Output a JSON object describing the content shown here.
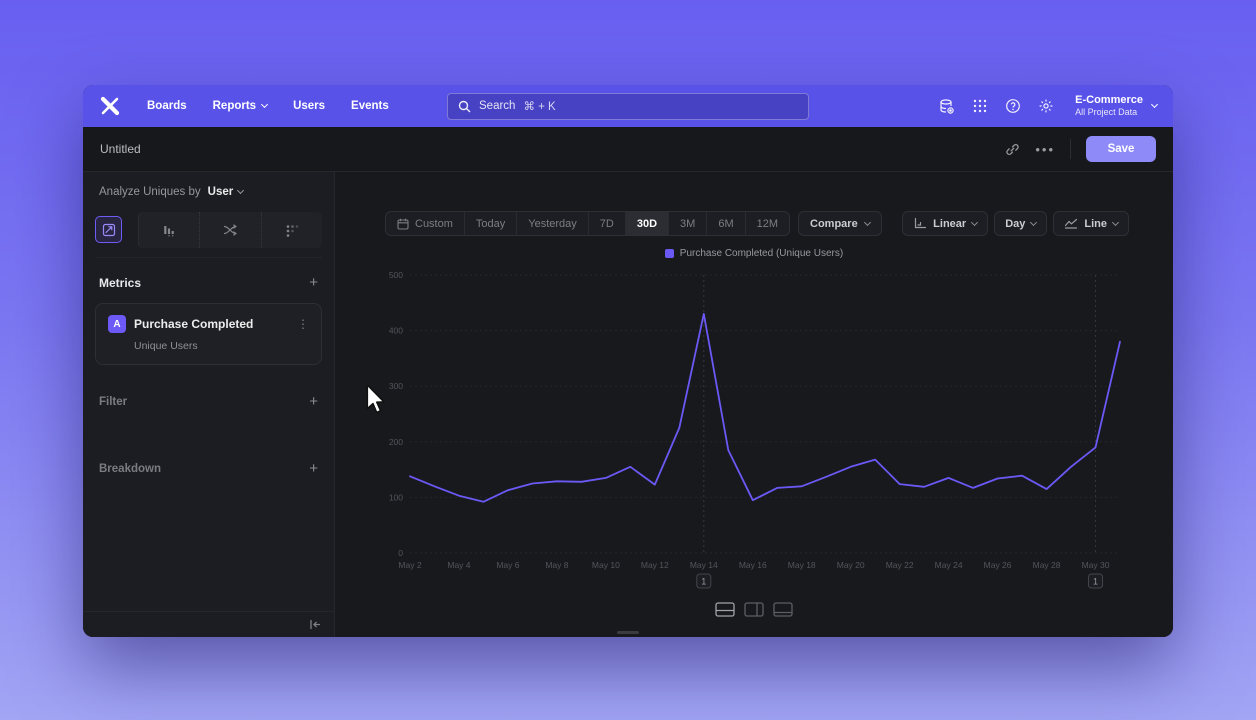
{
  "nav": {
    "items": [
      {
        "label": "Boards",
        "chevron": false
      },
      {
        "label": "Reports",
        "chevron": true
      },
      {
        "label": "Users",
        "chevron": false
      },
      {
        "label": "Events",
        "chevron": false
      }
    ],
    "search": {
      "label": "Search",
      "shortcut": "⌘ + K"
    },
    "icons": [
      "data-icon",
      "apps-grid-icon",
      "help-icon",
      "settings-gear-icon"
    ],
    "project": {
      "name": "E-Commerce",
      "subtitle": "All Project Data"
    }
  },
  "titlebar": {
    "title": "Untitled",
    "menu": "•••",
    "save_label": "Save"
  },
  "sidebar": {
    "analyze": {
      "prefix": "Analyze Uniques by",
      "value": "User"
    },
    "tabs": [
      "insights",
      "bars",
      "flows",
      "retention"
    ],
    "metrics": {
      "label": "Metrics",
      "add": "+"
    },
    "metric_card": {
      "badge": "A",
      "title": "Purchase Completed",
      "subtitle": "Unique Users",
      "menu": "⋮"
    },
    "filter": {
      "label": "Filter",
      "add": "+"
    },
    "breakdown": {
      "label": "Breakdown",
      "add": "+"
    }
  },
  "toolbar": {
    "ranges": [
      "Custom",
      "Today",
      "Yesterday",
      "7D",
      "30D",
      "3M",
      "6M",
      "12M"
    ],
    "selected_range": "30D",
    "compare_label": "Compare",
    "scale_label": "Linear",
    "granularity_label": "Day",
    "chart_type_label": "Line"
  },
  "chart_data": {
    "type": "line",
    "legend": [
      {
        "label": "Purchase Completed (Unique Users)",
        "color": "#6b59f6"
      }
    ],
    "x": [
      "May 2",
      "May 3",
      "May 4",
      "May 5",
      "May 6",
      "May 7",
      "May 8",
      "May 9",
      "May 10",
      "May 11",
      "May 12",
      "May 13",
      "May 14",
      "May 15",
      "May 16",
      "May 17",
      "May 18",
      "May 19",
      "May 20",
      "May 21",
      "May 22",
      "May 23",
      "May 24",
      "May 25",
      "May 26",
      "May 27",
      "May 28",
      "May 29",
      "May 30",
      "May 31"
    ],
    "x_tick_labels": [
      "May 2",
      "May 4",
      "May 6",
      "May 8",
      "May 10",
      "May 12",
      "May 14",
      "May 16",
      "May 18",
      "May 20",
      "May 22",
      "May 24",
      "May 26",
      "May 28",
      "May 30"
    ],
    "ylim": [
      0,
      500
    ],
    "yticks": [
      0,
      100,
      200,
      300,
      400,
      500
    ],
    "grid": "horizontal-dashed",
    "legend_position": "top-center",
    "series": [
      {
        "name": "Purchase Completed (Unique Users)",
        "color": "#6b59f6",
        "values": [
          138,
          120,
          103,
          92,
          113,
          125,
          129,
          128,
          135,
          155,
          123,
          225,
          430,
          185,
          95,
          117,
          120,
          137,
          155,
          168,
          124,
          119,
          135,
          117,
          134,
          139,
          115,
          155,
          190,
          380
        ]
      }
    ],
    "annotations": [
      {
        "x": "May 14",
        "label": "1"
      },
      {
        "x": "May 30",
        "label": "1"
      }
    ]
  }
}
